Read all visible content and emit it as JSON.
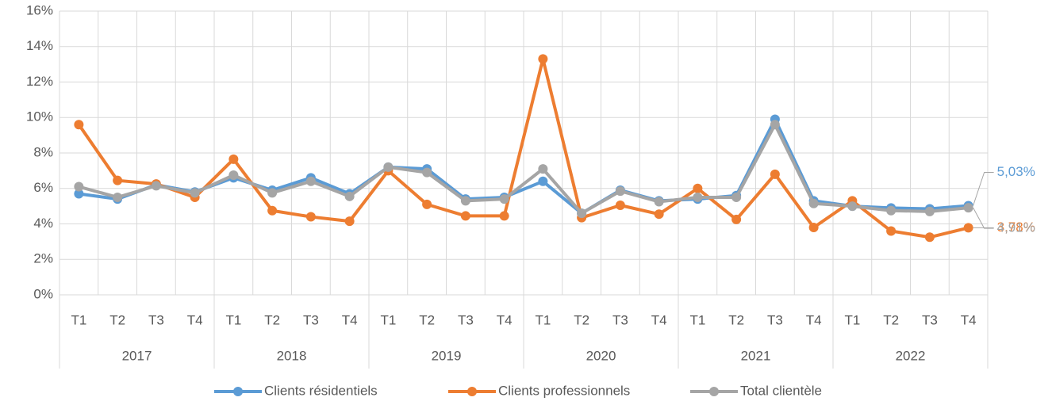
{
  "chart_data": {
    "type": "line",
    "categories": [
      "T1",
      "T2",
      "T3",
      "T4",
      "T1",
      "T2",
      "T3",
      "T4",
      "T1",
      "T2",
      "T3",
      "T4",
      "T1",
      "T2",
      "T3",
      "T4",
      "T1",
      "T2",
      "T3",
      "T4",
      "T1",
      "T2",
      "T3",
      "T4"
    ],
    "category_groups": [
      "2017",
      "2018",
      "2019",
      "2020",
      "2021",
      "2022"
    ],
    "series": [
      {
        "name": "Clients résidentiels",
        "color": "#5b9bd5",
        "values": [
          5.7,
          5.4,
          6.2,
          5.8,
          6.6,
          5.9,
          6.6,
          5.7,
          7.2,
          7.1,
          5.4,
          5.5,
          6.4,
          4.6,
          5.9,
          5.3,
          5.4,
          5.6,
          9.9,
          5.3,
          5.0,
          4.9,
          4.85,
          5.03
        ],
        "value_labels": [
          null,
          null,
          null,
          null,
          null,
          null,
          null,
          null,
          null,
          null,
          null,
          null,
          null,
          null,
          null,
          null,
          null,
          null,
          null,
          null,
          null,
          null,
          null,
          "5,03%"
        ]
      },
      {
        "name": "Clients professionnels",
        "color": "#ed7d31",
        "values": [
          9.6,
          6.45,
          6.25,
          5.5,
          7.65,
          4.75,
          4.4,
          4.15,
          7.0,
          5.1,
          4.45,
          4.45,
          13.3,
          4.35,
          5.05,
          4.55,
          6.0,
          4.25,
          6.8,
          3.8,
          5.3,
          3.6,
          3.25,
          3.78
        ],
        "value_labels": [
          null,
          null,
          null,
          null,
          null,
          null,
          null,
          null,
          null,
          null,
          null,
          null,
          null,
          null,
          null,
          null,
          null,
          null,
          null,
          null,
          null,
          null,
          null,
          "3,78%"
        ]
      },
      {
        "name": "Total clientèle",
        "color": "#a5a5a5",
        "values": [
          6.1,
          5.5,
          6.15,
          5.75,
          6.75,
          5.75,
          6.4,
          5.55,
          7.2,
          6.9,
          5.3,
          5.4,
          7.1,
          4.6,
          5.85,
          5.25,
          5.5,
          5.5,
          9.6,
          5.15,
          5.0,
          4.75,
          4.7,
          4.91
        ],
        "value_labels": [
          null,
          null,
          null,
          null,
          null,
          null,
          null,
          null,
          null,
          null,
          null,
          null,
          null,
          null,
          null,
          null,
          null,
          null,
          null,
          null,
          null,
          null,
          null,
          "4,91%"
        ]
      }
    ],
    "ylim": [
      0,
      16
    ],
    "yticks": [
      {
        "value": 0,
        "label": "0%"
      },
      {
        "value": 2,
        "label": "2%"
      },
      {
        "value": 4,
        "label": "4%"
      },
      {
        "value": 6,
        "label": "6%"
      },
      {
        "value": 8,
        "label": "8%"
      },
      {
        "value": 10,
        "label": "10%"
      },
      {
        "value": 12,
        "label": "12%"
      },
      {
        "value": 14,
        "label": "14%"
      },
      {
        "value": 16,
        "label": "16%"
      }
    ],
    "grid": true,
    "legend": "bottom"
  }
}
